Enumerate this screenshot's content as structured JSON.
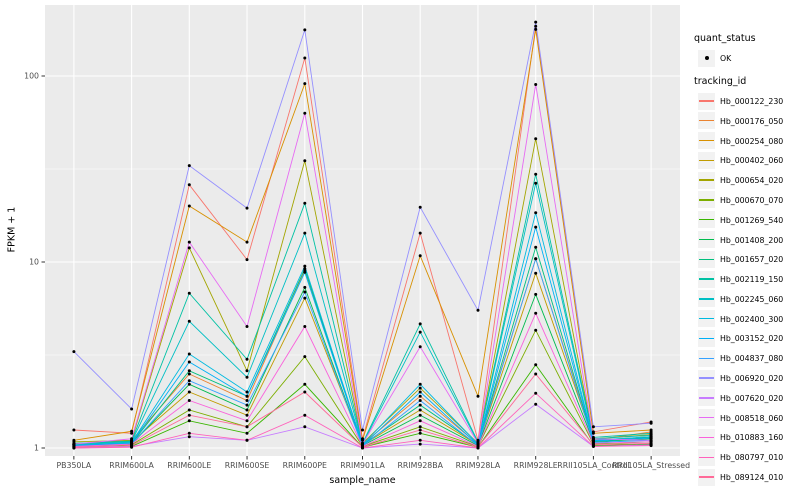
{
  "figure": {
    "background": "#FFFFFF",
    "panel_background": "#EBEBEB",
    "gridline_color": "#FFFFFF",
    "tick_color": "#333333",
    "tick_label_color": "#4D4D4D",
    "point_color": "#000000"
  },
  "axes": {
    "x_title": "sample_name",
    "y_title": "FPKM + 1",
    "y_tick_labels": [
      "1",
      "10",
      "100"
    ],
    "y_tick_values": [
      1,
      10,
      100
    ],
    "y_minor_values": [
      3.1623,
      31.623
    ]
  },
  "legend": {
    "quant_status_title": "quant_status",
    "ok_label": "OK",
    "tracking_title": "tracking_id"
  },
  "chart_data": {
    "type": "line",
    "title": "",
    "xlabel": "sample_name",
    "ylabel": "FPKM + 1",
    "y_scale": "log10",
    "ylim": [
      0.91,
      240
    ],
    "y_ticks": [
      1,
      10,
      100
    ],
    "grid": true,
    "legend_position": "right",
    "x_categories": [
      "PB350LA",
      "RRIM600LA",
      "RRIM600LE",
      "RRIM600SE",
      "RRIM600PE",
      "RRIM901LA",
      "RRIM928BA",
      "RRIM928LA",
      "RRIM928LE",
      "RRII105LA_Control",
      "RRII105LA_Stressed"
    ],
    "quant_status": "OK",
    "series": [
      {
        "name": "Hb_000122_230",
        "color": "#F8766D",
        "values": [
          1.25,
          1.2,
          26,
          10.3,
          125,
          1.12,
          14.3,
          1.1,
          185,
          1.22,
          1.38
        ]
      },
      {
        "name": "Hb_000176_050",
        "color": "#EA8331",
        "values": [
          1.05,
          1.1,
          2.5,
          1.8,
          9.0,
          1.05,
          1.9,
          1.05,
          10.4,
          1.1,
          1.22
        ]
      },
      {
        "name": "Hb_000254_080",
        "color": "#D89000",
        "values": [
          1.1,
          1.23,
          20,
          12.8,
          91,
          1.1,
          10.8,
          1.9,
          178,
          1.2,
          1.25
        ]
      },
      {
        "name": "Hb_000402_060",
        "color": "#C09B00",
        "values": [
          1.05,
          1.08,
          2.0,
          1.5,
          6.4,
          1.04,
          1.6,
          1.04,
          8.7,
          1.1,
          1.15
        ]
      },
      {
        "name": "Hb_000654_020",
        "color": "#A3A500",
        "values": [
          1.08,
          1.1,
          11.9,
          2.6,
          35,
          1.06,
          2.1,
          1.06,
          46,
          1.12,
          1.18
        ]
      },
      {
        "name": "Hb_000670_070",
        "color": "#7CAE00",
        "values": [
          1.02,
          1.04,
          1.6,
          1.3,
          3.1,
          1.02,
          1.3,
          1.02,
          4.3,
          1.05,
          1.08
        ]
      },
      {
        "name": "Hb_001269_540",
        "color": "#39B600",
        "values": [
          1.01,
          1.02,
          1.4,
          1.2,
          2.2,
          1.01,
          1.2,
          1.01,
          2.8,
          1.03,
          1.05
        ]
      },
      {
        "name": "Hb_001408_200",
        "color": "#00BB4E",
        "values": [
          1.03,
          1.05,
          2.2,
          1.6,
          7.3,
          1.03,
          1.5,
          1.03,
          6.7,
          1.08,
          1.12
        ]
      },
      {
        "name": "Hb_001657_020",
        "color": "#00BF7D",
        "values": [
          1.04,
          1.06,
          2.6,
          1.9,
          9.2,
          1.04,
          1.7,
          1.04,
          12.0,
          1.09,
          1.14
        ]
      },
      {
        "name": "Hb_002119_150",
        "color": "#00C1A3",
        "values": [
          1.06,
          1.09,
          6.8,
          3.0,
          20.7,
          1.06,
          4.65,
          1.08,
          29.6,
          1.14,
          1.2
        ]
      },
      {
        "name": "Hb_002245_060",
        "color": "#00BFC4",
        "values": [
          1.05,
          1.08,
          4.8,
          2.4,
          14.3,
          1.05,
          4.2,
          1.07,
          26.5,
          1.12,
          1.17
        ]
      },
      {
        "name": "Hb_002400_300",
        "color": "#00BAE0",
        "values": [
          1.04,
          1.07,
          3.2,
          2.0,
          9.5,
          1.04,
          2.2,
          1.05,
          18.4,
          1.1,
          1.15
        ]
      },
      {
        "name": "Hb_003152_020",
        "color": "#00B0F6",
        "values": [
          1.03,
          1.06,
          2.9,
          1.9,
          8.8,
          1.03,
          2.0,
          1.04,
          15.4,
          1.09,
          1.13
        ]
      },
      {
        "name": "Hb_004837_080",
        "color": "#35A2FF",
        "values": [
          1.02,
          1.05,
          2.3,
          1.7,
          6.9,
          1.02,
          1.8,
          1.03,
          10.4,
          1.07,
          1.1
        ]
      },
      {
        "name": "Hb_006920_020",
        "color": "#9590FF",
        "values": [
          3.3,
          1.62,
          33,
          19.5,
          177,
          1.25,
          19.7,
          5.5,
          195,
          1.3,
          1.36
        ]
      },
      {
        "name": "Hb_007620_020",
        "color": "#C77CFF",
        "values": [
          1.0,
          1.02,
          1.15,
          1.1,
          1.3,
          1.0,
          1.05,
          1.0,
          1.72,
          1.02,
          1.04
        ]
      },
      {
        "name": "Hb_008518_060",
        "color": "#E76BF3",
        "values": [
          1.05,
          1.12,
          12.8,
          4.5,
          63,
          1.05,
          3.5,
          1.06,
          90,
          1.12,
          1.1
        ]
      },
      {
        "name": "Hb_010883_160",
        "color": "#FA62DB",
        "values": [
          1.02,
          1.05,
          1.8,
          1.4,
          4.5,
          1.02,
          1.4,
          1.02,
          5.3,
          1.06,
          1.08
        ]
      },
      {
        "name": "Hb_080797_010",
        "color": "#FF62BC",
        "values": [
          1.0,
          1.01,
          1.2,
          1.1,
          1.5,
          1.0,
          1.1,
          1.0,
          1.97,
          1.02,
          1.03
        ]
      },
      {
        "name": "Hb_089124_010",
        "color": "#FF6A98",
        "values": [
          1.01,
          1.03,
          1.5,
          1.3,
          2.0,
          1.01,
          1.25,
          1.01,
          2.5,
          1.04,
          1.06
        ]
      }
    ]
  }
}
